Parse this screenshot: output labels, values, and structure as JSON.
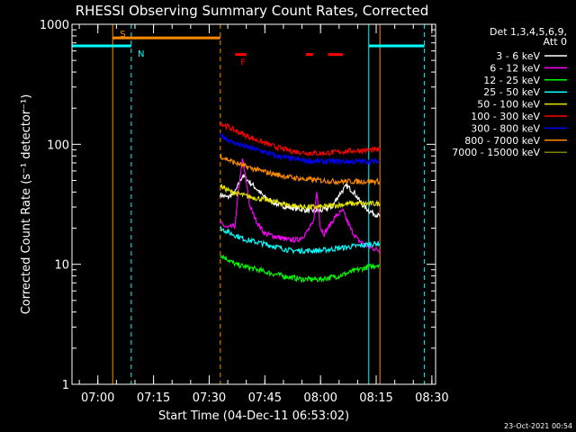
{
  "chart_data": {
    "type": "line",
    "title": "RHESSI Observing Summary Count Rates, Corrected",
    "xlabel": "Start Time (04-Dec-11 06:53:02)",
    "ylabel": "Corrected Count Rate (s⁻¹ detector⁻¹)",
    "yscale": "log",
    "xlim": [
      "06:53:02",
      "08:31:00"
    ],
    "ylim": [
      1,
      1000
    ],
    "x_ticks": [
      "07:00",
      "07:15",
      "07:30",
      "07:45",
      "08:00",
      "08:15",
      "08:30"
    ],
    "y_ticks": [
      "1",
      "10",
      "100",
      "1000"
    ],
    "legend_header": [
      "Det 1,3,4,5,6,9,",
      "Att 0"
    ],
    "legend_position": "right",
    "data_gap_before": "07:33",
    "data_end": "08:16",
    "series": [
      {
        "name": "3 - 6 keV",
        "color": "#ffffff",
        "x": [
          "07:33",
          "07:35",
          "07:37",
          "07:39",
          "07:42",
          "07:45",
          "07:48",
          "07:51",
          "07:54",
          "07:57",
          "08:00",
          "08:03",
          "08:05",
          "08:07",
          "08:09",
          "08:11",
          "08:13",
          "08:16"
        ],
        "values": [
          38,
          36,
          40,
          55,
          45,
          36,
          32,
          30,
          29,
          28,
          28,
          30,
          38,
          45,
          40,
          32,
          28,
          25
        ]
      },
      {
        "name": "6 - 12 keV",
        "color": "#ff00ff",
        "x": [
          "07:33",
          "07:35",
          "07:37",
          "07:38",
          "07:39",
          "07:40",
          "07:41",
          "07:43",
          "07:45",
          "07:48",
          "07:51",
          "07:54",
          "07:56",
          "07:58",
          "07:59",
          "08:00",
          "08:01",
          "08:02",
          "08:04",
          "08:06",
          "08:08",
          "08:10",
          "08:13",
          "08:16"
        ],
        "values": [
          22,
          20,
          21,
          45,
          75,
          48,
          30,
          22,
          18,
          17,
          16,
          16,
          18,
          22,
          40,
          20,
          18,
          20,
          25,
          28,
          20,
          16,
          14,
          13
        ]
      },
      {
        "name": "12 - 25 keV",
        "color": "#00ff00",
        "x": [
          "07:33",
          "07:35",
          "07:37",
          "07:40",
          "07:43",
          "07:46",
          "07:50",
          "07:55",
          "08:00",
          "08:05",
          "08:10",
          "08:13",
          "08:16"
        ],
        "values": [
          12,
          11,
          10,
          9.5,
          9,
          8.5,
          8,
          7.5,
          7.5,
          8,
          9,
          9.5,
          10
        ]
      },
      {
        "name": "25 - 50 keV",
        "color": "#00ffff",
        "x": [
          "07:33",
          "07:36",
          "07:40",
          "07:44",
          "07:48",
          "07:52",
          "07:56",
          "08:00",
          "08:04",
          "08:08",
          "08:12",
          "08:16"
        ],
        "values": [
          20,
          18,
          16,
          15,
          14,
          13,
          13,
          13,
          13.5,
          14,
          14.5,
          15
        ]
      },
      {
        "name": "50 - 100 keV",
        "color": "#e6e600",
        "x": [
          "07:33",
          "07:36",
          "07:40",
          "07:44",
          "07:48",
          "07:52",
          "07:56",
          "08:00",
          "08:04",
          "08:08",
          "08:12",
          "08:16"
        ],
        "values": [
          45,
          40,
          37,
          35,
          33,
          31,
          30,
          30,
          31,
          32,
          32,
          32
        ]
      },
      {
        "name": "100 - 300 keV",
        "color": "#ff0000",
        "x": [
          "07:33",
          "07:36",
          "07:40",
          "07:44",
          "07:48",
          "07:52",
          "07:56",
          "08:00",
          "08:04",
          "08:08",
          "08:12",
          "08:16"
        ],
        "values": [
          150,
          135,
          118,
          105,
          95,
          88,
          85,
          84,
          86,
          88,
          89,
          90
        ]
      },
      {
        "name": "300 - 800 keV",
        "color": "#0000ff",
        "x": [
          "07:33",
          "07:36",
          "07:40",
          "07:44",
          "07:48",
          "07:52",
          "07:56",
          "08:00",
          "08:04",
          "08:08",
          "08:12",
          "08:16"
        ],
        "values": [
          120,
          105,
          95,
          88,
          80,
          76,
          73,
          72,
          72,
          72,
          72,
          72
        ]
      },
      {
        "name": "800 - 7000 keV",
        "color": "#ff8c00",
        "x": [
          "07:33",
          "07:36",
          "07:40",
          "07:44",
          "07:48",
          "07:52",
          "07:56",
          "08:00",
          "08:04",
          "08:08",
          "08:12",
          "08:16"
        ],
        "values": [
          80,
          72,
          65,
          60,
          56,
          53,
          51,
          50,
          49,
          49,
          49,
          49
        ]
      },
      {
        "name": "7000 - 15000 keV",
        "color": "#808000",
        "x": [],
        "values": []
      }
    ],
    "flag_bars": [
      {
        "label": "S",
        "color": "#ff8c00",
        "level": 770,
        "from": "07:04",
        "to": "07:33"
      },
      {
        "label": "N",
        "color": "#00ffff",
        "level": 660,
        "from": "06:53:02",
        "to": "07:09"
      },
      {
        "label": "N",
        "color": "#00ffff",
        "level": 660,
        "from": "08:13",
        "to": "08:28"
      },
      {
        "label": "F",
        "color": "#ff0000",
        "level": 560,
        "segments": [
          [
            "07:37",
            "07:40"
          ],
          [
            "07:56",
            "07:58"
          ],
          [
            "08:02",
            "08:06"
          ]
        ]
      }
    ],
    "vlines": [
      {
        "time": "07:04",
        "color": "#ff8c00",
        "style": "solid"
      },
      {
        "time": "07:09",
        "color": "#00ffff",
        "style": "dashed"
      },
      {
        "time": "07:33",
        "color": "#ff8c00",
        "style": "dashed"
      },
      {
        "time": "08:13",
        "color": "#00ffff",
        "style": "solid"
      },
      {
        "time": "08:16",
        "color": "#ff8c00",
        "style": "solid"
      },
      {
        "time": "08:28",
        "color": "#00ffff",
        "style": "dashed"
      }
    ]
  },
  "timestamp": "23-Oct-2021 00:54"
}
